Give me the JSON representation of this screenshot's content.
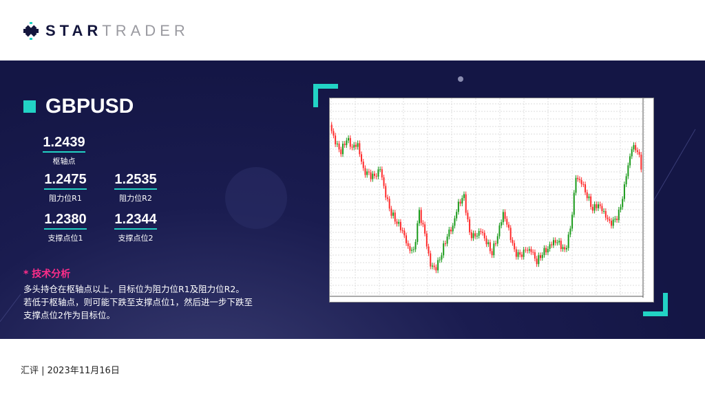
{
  "brand": {
    "name_part1": "STAR",
    "name_part2": "TRADER",
    "accent": "#22d3c5"
  },
  "symbol": "GBPUSD",
  "levels": {
    "pivot": {
      "value": "1.2439",
      "label": "枢轴点"
    },
    "r1": {
      "value": "1.2475",
      "label": "阻力位R1"
    },
    "r2": {
      "value": "1.2535",
      "label": "阻力位R2"
    },
    "s1": {
      "value": "1.2380",
      "label": "支撑点位1"
    },
    "s2": {
      "value": "1.2344",
      "label": "支撑点位2"
    }
  },
  "analysis": {
    "heading": "* 技术分析",
    "lines": [
      "多头持仓在枢轴点以上，目标位为阻力位R1及阻力位R2。",
      "若低于枢轴点，则可能下跌至支撑点位1，然后进一步下跌至",
      "支撑点位2作为目标位。"
    ]
  },
  "footer": "汇评 | 2023年11月16日",
  "chart": {
    "type": "candlestick",
    "timeframe": "H4",
    "up_color": "#1a9a1a",
    "down_color": "#ff2a2a"
  }
}
